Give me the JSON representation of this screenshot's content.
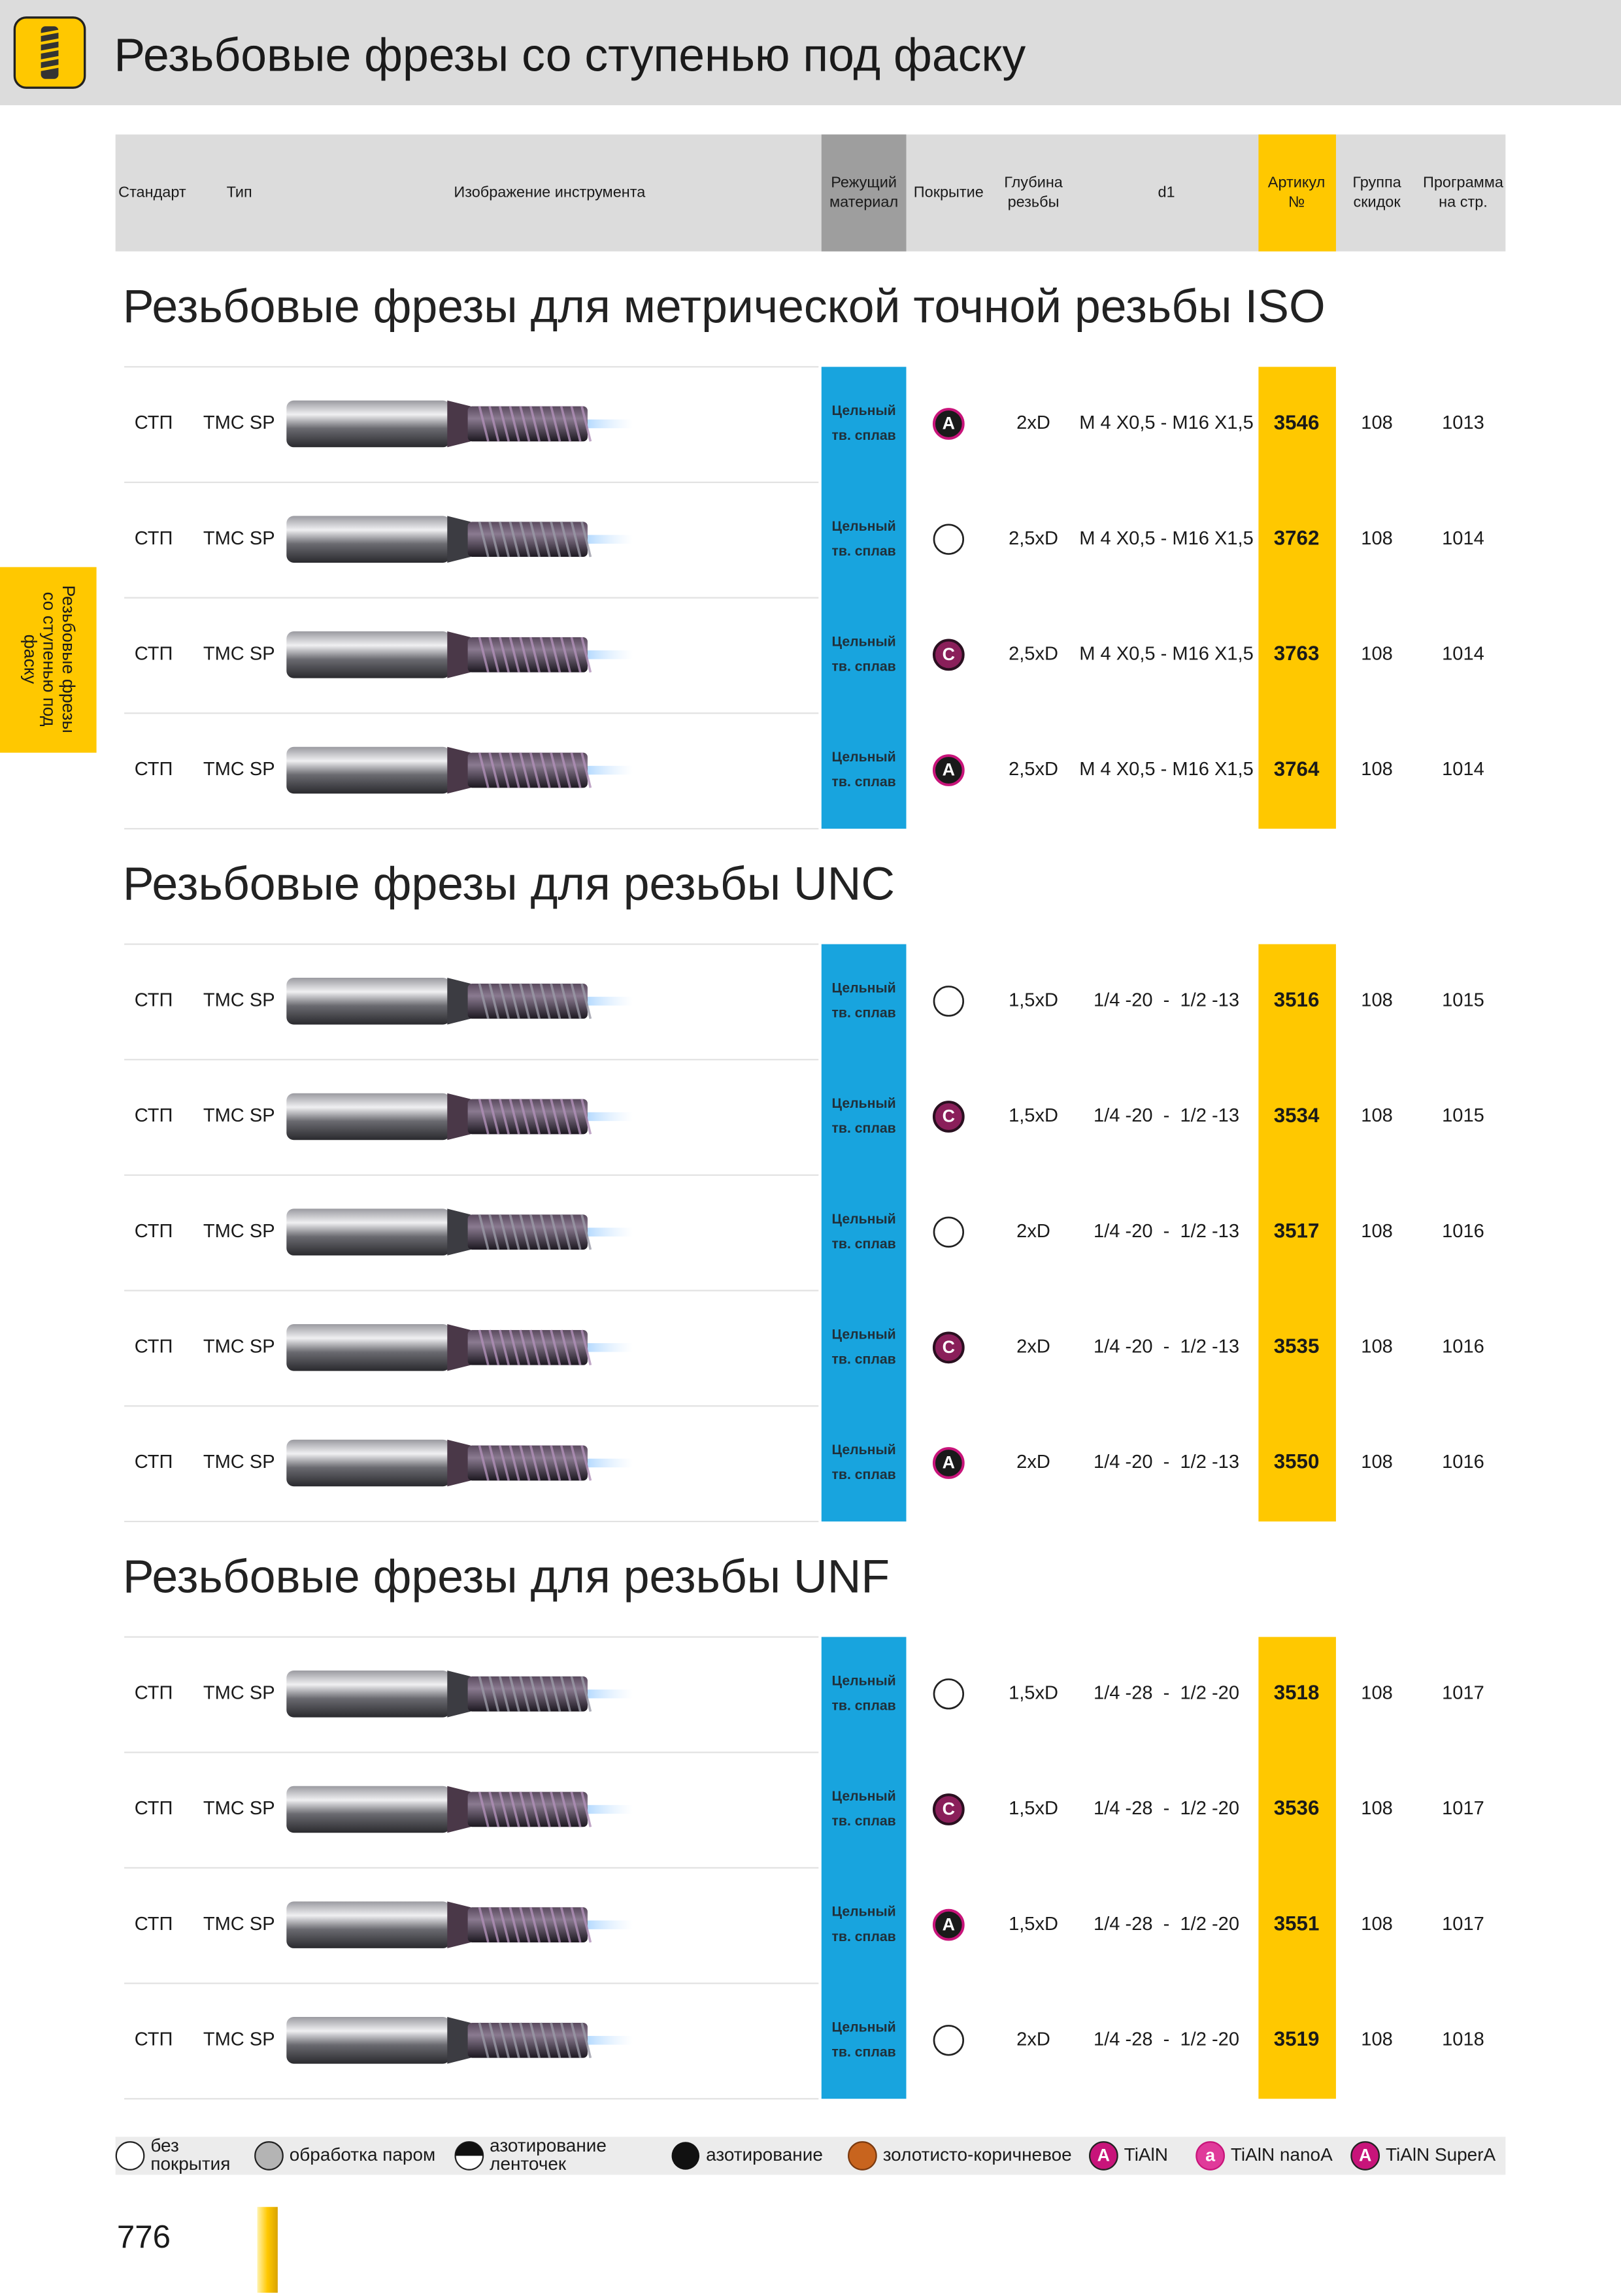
{
  "header": {
    "title": "Резьбовые фрезы со ступенью под фаску"
  },
  "side_tab": {
    "lines": [
      "Резьбовые фрезы",
      "со ступенью под",
      "фаску"
    ]
  },
  "table": {
    "columns": [
      [
        "Стандарт"
      ],
      [
        "Тип"
      ],
      [
        "Изображение инструмента"
      ],
      [
        "Режущий",
        "материал"
      ],
      [
        "Покрытие"
      ],
      [
        "Глубина",
        "резьбы"
      ],
      [
        "d1"
      ],
      [
        "Артикул",
        "№"
      ],
      [
        "Группа",
        "скидок"
      ],
      [
        "Программа",
        "на стр."
      ]
    ],
    "sections": [
      {
        "title": "Резьбовые фрезы для метрической точной резьбы ISO",
        "rows": [
          {
            "standard": "СТП",
            "type": "TMC SP",
            "material": [
              "Цельный",
              "тв. сплав"
            ],
            "coating": "A",
            "depth": "2xD",
            "d1": "M 4 X0,5 - M16 X1,5",
            "article": "3546",
            "discount_group": "108",
            "page": "1013"
          },
          {
            "standard": "СТП",
            "type": "TMC SP",
            "material": [
              "Цельный",
              "тв. сплав"
            ],
            "coating": null,
            "depth": "2,5xD",
            "d1": "M 4 X0,5 - M16 X1,5",
            "article": "3762",
            "discount_group": "108",
            "page": "1014"
          },
          {
            "standard": "СТП",
            "type": "TMC SP",
            "material": [
              "Цельный",
              "тв. сплав"
            ],
            "coating": "C",
            "depth": "2,5xD",
            "d1": "M 4 X0,5 - M16 X1,5",
            "article": "3763",
            "discount_group": "108",
            "page": "1014"
          },
          {
            "standard": "СТП",
            "type": "TMC SP",
            "material": [
              "Цельный",
              "тв. сплав"
            ],
            "coating": "A",
            "depth": "2,5xD",
            "d1": "M 4 X0,5 - M16 X1,5",
            "article": "3764",
            "discount_group": "108",
            "page": "1014"
          }
        ]
      },
      {
        "title": "Резьбовые фрезы для резьбы UNC",
        "rows": [
          {
            "standard": "СТП",
            "type": "TMC SP",
            "material": [
              "Цельный",
              "тв. сплав"
            ],
            "coating": null,
            "depth": "1,5xD",
            "d1": "1/4 -20  -  1/2 -13",
            "article": "3516",
            "discount_group": "108",
            "page": "1015"
          },
          {
            "standard": "СТП",
            "type": "TMC SP",
            "material": [
              "Цельный",
              "тв. сплав"
            ],
            "coating": "C",
            "depth": "1,5xD",
            "d1": "1/4 -20  -  1/2 -13",
            "article": "3534",
            "discount_group": "108",
            "page": "1015"
          },
          {
            "standard": "СТП",
            "type": "TMC SP",
            "material": [
              "Цельный",
              "тв. сплав"
            ],
            "coating": null,
            "depth": "2xD",
            "d1": "1/4 -20  -  1/2 -13",
            "article": "3517",
            "discount_group": "108",
            "page": "1016"
          },
          {
            "standard": "СТП",
            "type": "TMC SP",
            "material": [
              "Цельный",
              "тв. сплав"
            ],
            "coating": "C",
            "depth": "2xD",
            "d1": "1/4 -20  -  1/2 -13",
            "article": "3535",
            "discount_group": "108",
            "page": "1016"
          },
          {
            "standard": "СТП",
            "type": "TMC SP",
            "material": [
              "Цельный",
              "тв. сплав"
            ],
            "coating": "A",
            "depth": "2xD",
            "d1": "1/4 -20  -  1/2 -13",
            "article": "3550",
            "discount_group": "108",
            "page": "1016"
          }
        ]
      },
      {
        "title": "Резьбовые фрезы для резьбы UNF",
        "rows": [
          {
            "standard": "СТП",
            "type": "TMC SP",
            "material": [
              "Цельный",
              "тв. сплав"
            ],
            "coating": null,
            "depth": "1,5xD",
            "d1": "1/4 -28  -  1/2 -20",
            "article": "3518",
            "discount_group": "108",
            "page": "1017"
          },
          {
            "standard": "СТП",
            "type": "TMC SP",
            "material": [
              "Цельный",
              "тв. сплав"
            ],
            "coating": "C",
            "depth": "1,5xD",
            "d1": "1/4 -28  -  1/2 -20",
            "article": "3536",
            "discount_group": "108",
            "page": "1017"
          },
          {
            "standard": "СТП",
            "type": "TMC SP",
            "material": [
              "Цельный",
              "тв. сплав"
            ],
            "coating": "A",
            "depth": "1,5xD",
            "d1": "1/4 -28  -  1/2 -20",
            "article": "3551",
            "discount_group": "108",
            "page": "1017"
          },
          {
            "standard": "СТП",
            "type": "TMC SP",
            "material": [
              "Цельный",
              "тв. сплав"
            ],
            "coating": null,
            "depth": "2xD",
            "d1": "1/4 -28  -  1/2 -20",
            "article": "3519",
            "discount_group": "108",
            "page": "1018"
          }
        ]
      }
    ]
  },
  "legend": {
    "items": [
      {
        "label": [
          "без",
          "покрытия"
        ]
      },
      {
        "label": [
          "обработка паром"
        ]
      },
      {
        "label": [
          "азотирование",
          "ленточек"
        ]
      },
      {
        "label": [
          "азотирование"
        ]
      },
      {
        "label": [
          "золотисто-коричневое"
        ]
      },
      {
        "badge": "A",
        "label": [
          "TiAlN"
        ]
      },
      {
        "badge": "a",
        "label": [
          "TiAlN nanoA"
        ]
      },
      {
        "badge": "A",
        "label": [
          "TiAlN SuperA"
        ]
      }
    ]
  },
  "page_number": "776"
}
